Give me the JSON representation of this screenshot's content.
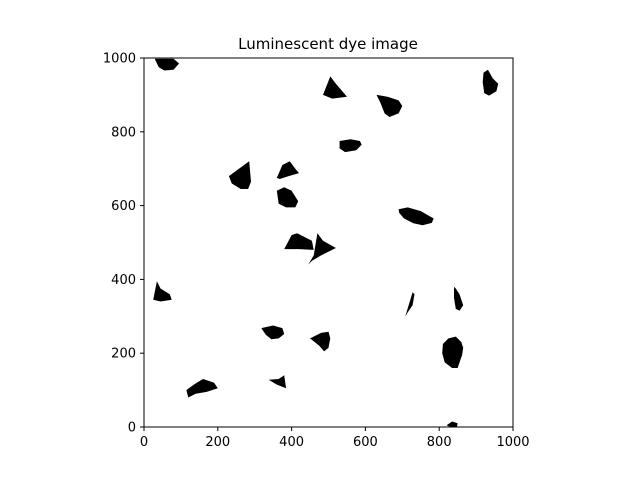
{
  "chart_data": {
    "type": "image",
    "title": "Luminescent dye image",
    "xlabel": "",
    "ylabel": "",
    "xlim": [
      0,
      1000
    ],
    "ylim": [
      0,
      1000
    ],
    "xticks": [
      0,
      200,
      400,
      600,
      800,
      1000
    ],
    "yticks": [
      0,
      200,
      400,
      600,
      800,
      1000
    ],
    "grid": false,
    "colors": {
      "background": "#ffffff",
      "blob": "#000000",
      "axis": "#000000"
    },
    "blobs": [
      {
        "id": "blob-top-left",
        "points": [
          [
            30,
            998
          ],
          [
            80,
            998
          ],
          [
            95,
            985
          ],
          [
            80,
            968
          ],
          [
            55,
            966
          ],
          [
            40,
            975
          ],
          [
            30,
            995
          ]
        ]
      },
      {
        "id": "blob-triangle-top",
        "points": [
          [
            485,
            900
          ],
          [
            505,
            950
          ],
          [
            520,
            930
          ],
          [
            550,
            895
          ],
          [
            510,
            890
          ]
        ]
      },
      {
        "id": "blob-oval-870",
        "points": [
          [
            630,
            900
          ],
          [
            660,
            895
          ],
          [
            690,
            885
          ],
          [
            700,
            870
          ],
          [
            690,
            850
          ],
          [
            665,
            840
          ],
          [
            652,
            850
          ],
          [
            640,
            880
          ]
        ]
      },
      {
        "id": "blob-top-right",
        "points": [
          [
            920,
            960
          ],
          [
            932,
            968
          ],
          [
            945,
            945
          ],
          [
            960,
            930
          ],
          [
            955,
            910
          ],
          [
            935,
            898
          ],
          [
            922,
            905
          ],
          [
            918,
            935
          ]
        ]
      },
      {
        "id": "blob-oval-760",
        "points": [
          [
            530,
            775
          ],
          [
            560,
            780
          ],
          [
            585,
            775
          ],
          [
            590,
            765
          ],
          [
            575,
            750
          ],
          [
            545,
            745
          ],
          [
            530,
            755
          ]
        ]
      },
      {
        "id": "blob-wedge-670",
        "points": [
          [
            230,
            680
          ],
          [
            285,
            720
          ],
          [
            290,
            665
          ],
          [
            282,
            645
          ],
          [
            262,
            645
          ],
          [
            238,
            660
          ]
        ]
      },
      {
        "id": "blob-drop-690",
        "points": [
          [
            360,
            675
          ],
          [
            375,
            710
          ],
          [
            395,
            720
          ],
          [
            410,
            700
          ],
          [
            420,
            688
          ],
          [
            392,
            680
          ],
          [
            368,
            672
          ]
        ]
      },
      {
        "id": "blob-round-625",
        "points": [
          [
            360,
            640
          ],
          [
            380,
            650
          ],
          [
            400,
            640
          ],
          [
            418,
            612
          ],
          [
            410,
            595
          ],
          [
            385,
            595
          ],
          [
            365,
            605
          ]
        ]
      },
      {
        "id": "blob-oval-570",
        "points": [
          [
            690,
            590
          ],
          [
            715,
            595
          ],
          [
            750,
            585
          ],
          [
            785,
            565
          ],
          [
            780,
            553
          ],
          [
            755,
            547
          ],
          [
            730,
            552
          ],
          [
            705,
            565
          ],
          [
            692,
            580
          ]
        ]
      },
      {
        "id": "blob-arrow-a",
        "points": [
          [
            380,
            482
          ],
          [
            400,
            520
          ],
          [
            415,
            525
          ],
          [
            455,
            505
          ],
          [
            460,
            480
          ],
          [
            420,
            482
          ]
        ]
      },
      {
        "id": "blob-arrow-b",
        "points": [
          [
            445,
            440
          ],
          [
            460,
            465
          ],
          [
            470,
            525
          ],
          [
            485,
            505
          ],
          [
            520,
            485
          ],
          [
            480,
            465
          ],
          [
            455,
            450
          ]
        ]
      },
      {
        "id": "blob-left-360",
        "points": [
          [
            25,
            345
          ],
          [
            35,
            395
          ],
          [
            45,
            375
          ],
          [
            70,
            360
          ],
          [
            75,
            345
          ],
          [
            45,
            340
          ]
        ]
      },
      {
        "id": "blob-sliver-320",
        "points": [
          [
            700,
            285
          ],
          [
            708,
            300
          ],
          [
            728,
            365
          ],
          [
            733,
            360
          ],
          [
            728,
            330
          ],
          [
            713,
            308
          ]
        ]
      },
      {
        "id": "blob-sliver-350",
        "points": [
          [
            840,
            380
          ],
          [
            845,
            375
          ],
          [
            855,
            360
          ],
          [
            865,
            330
          ],
          [
            855,
            315
          ],
          [
            845,
            320
          ],
          [
            840,
            350
          ]
        ]
      },
      {
        "id": "blob-wedge-260",
        "points": [
          [
            318,
            268
          ],
          [
            350,
            275
          ],
          [
            375,
            268
          ],
          [
            380,
            252
          ],
          [
            365,
            240
          ],
          [
            345,
            238
          ],
          [
            330,
            250
          ]
        ]
      },
      {
        "id": "blob-crescent-240",
        "points": [
          [
            450,
            240
          ],
          [
            480,
            255
          ],
          [
            500,
            258
          ],
          [
            505,
            240
          ],
          [
            500,
            215
          ],
          [
            488,
            205
          ],
          [
            475,
            220
          ]
        ]
      },
      {
        "id": "blob-big-205",
        "points": [
          [
            810,
            225
          ],
          [
            825,
            240
          ],
          [
            845,
            245
          ],
          [
            860,
            230
          ],
          [
            865,
            215
          ],
          [
            862,
            195
          ],
          [
            850,
            160
          ],
          [
            835,
            160
          ],
          [
            815,
            175
          ],
          [
            808,
            200
          ]
        ]
      },
      {
        "id": "blob-oval-105",
        "points": [
          [
            115,
            100
          ],
          [
            120,
            80
          ],
          [
            140,
            90
          ],
          [
            170,
            95
          ],
          [
            200,
            105
          ],
          [
            190,
            120
          ],
          [
            160,
            130
          ],
          [
            135,
            115
          ]
        ]
      },
      {
        "id": "blob-wedge-125",
        "points": [
          [
            338,
            128
          ],
          [
            360,
            115
          ],
          [
            385,
            105
          ],
          [
            380,
            140
          ],
          [
            365,
            130
          ]
        ]
      },
      {
        "id": "blob-bottom-840",
        "points": [
          [
            820,
            5
          ],
          [
            835,
            15
          ],
          [
            850,
            10
          ],
          [
            848,
            0
          ],
          [
            830,
            0
          ]
        ]
      }
    ]
  }
}
